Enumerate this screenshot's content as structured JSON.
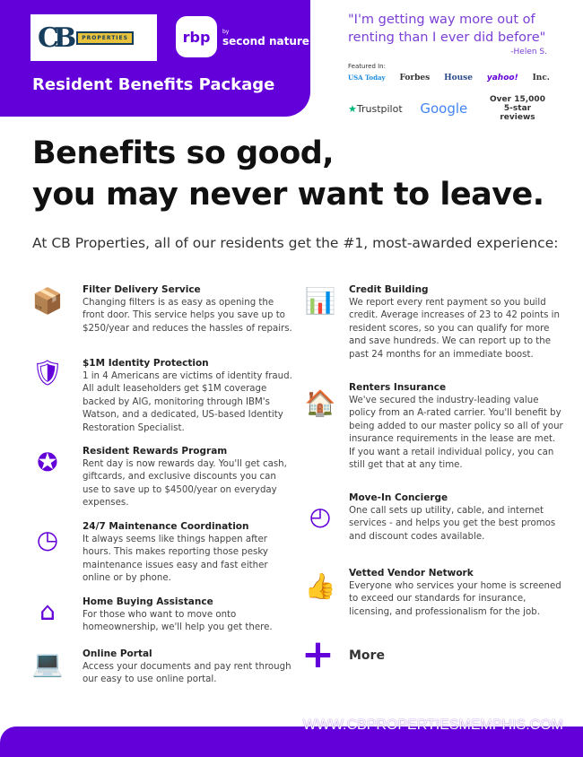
{
  "header": {
    "logo_cb": "CB",
    "logo_properties": "PROPERTIES",
    "logo_rbp": "rbp",
    "logo_by": "by",
    "logo_second_nature": "second nature",
    "title": "Resident Benefits Package"
  },
  "testimonial": {
    "quote": "\"I'm getting way more out of renting than I ever did before\"",
    "author": "-Helen S.",
    "featured_label": "Featured In:",
    "featured": [
      "USA Today",
      "Forbes",
      "House",
      "yahoo!",
      "Inc."
    ],
    "trustpilot": "Trustpilot",
    "google": "Google",
    "reviews": "Over 15,000 5-star reviews"
  },
  "headline": {
    "line1": "Benefits so good,",
    "line2": "you may never want to leave."
  },
  "subheadline": "At CB Properties, all of our residents get the #1, most-awarded experience:",
  "left": [
    {
      "icon": "box-delivery-icon",
      "title": "Filter Delivery Service",
      "text": "Changing filters is as easy as opening the front door. This service helps you save up to $250/year and reduces the hassles of repairs."
    },
    {
      "icon": "id-shield-icon",
      "title": "$1M Identity Protection",
      "text": "1 in 4 Americans are victims of identity fraud. All adult leaseholders get $1M coverage backed by AIG, monitoring through IBM's Watson, and a dedicated, US-based Identity Restoration Specialist."
    },
    {
      "icon": "award-ribbon-icon",
      "title": "Resident Rewards Program",
      "text": "Rent day is now rewards day. You'll get cash, giftcards, and exclusive discounts you can use to save up to $4500/year on everyday expenses."
    },
    {
      "icon": "clock-icon",
      "title": "24/7 Maintenance Coordination",
      "text": "It always seems like things happen after hours. This makes reporting those pesky maintenance issues easy and fast either online or by phone."
    },
    {
      "icon": "house-sign-icon",
      "title": "Home Buying Assistance",
      "text": "For those who want to move onto homeownership, we'll help you get there."
    },
    {
      "icon": "laptop-icon",
      "title": "Online Portal",
      "text": "Access your documents and pay rent through our easy to use online portal."
    }
  ],
  "right": [
    {
      "icon": "bar-chart-icon",
      "title": "Credit Building",
      "text": "We report every rent payment so you build credit. Average increases of 23 to 42 points in resident scores, so you can qualify for more and save hundreds. We can report up to the past 24 months for an immediate boost."
    },
    {
      "icon": "house-umbrella-icon",
      "title": "Renters Insurance",
      "text": "We've secured the industry-leading value policy from an A-rated carrier. You'll benefit by being added to our master policy so all of your insurance requirements in the lease are met. If you want a retail individual policy, you can still get that at any time."
    },
    {
      "icon": "clock-24-icon",
      "title": "Move-In Concierge",
      "text": "One call sets up utility, cable, and internet services - and helps you get the best promos and discount codes available."
    },
    {
      "icon": "thumbs-up-icon",
      "title": "Vetted Vendor Network",
      "text": "Everyone who services your home is screened to exceed our standards for insurance, licensing, and professionalism for the job."
    }
  ],
  "more": "More",
  "footer": {
    "url": "WWW.CBPROPERTIESMEMPHIS.COM"
  },
  "colors": {
    "brand": "#6300d9",
    "quote": "#7a3fd6"
  }
}
